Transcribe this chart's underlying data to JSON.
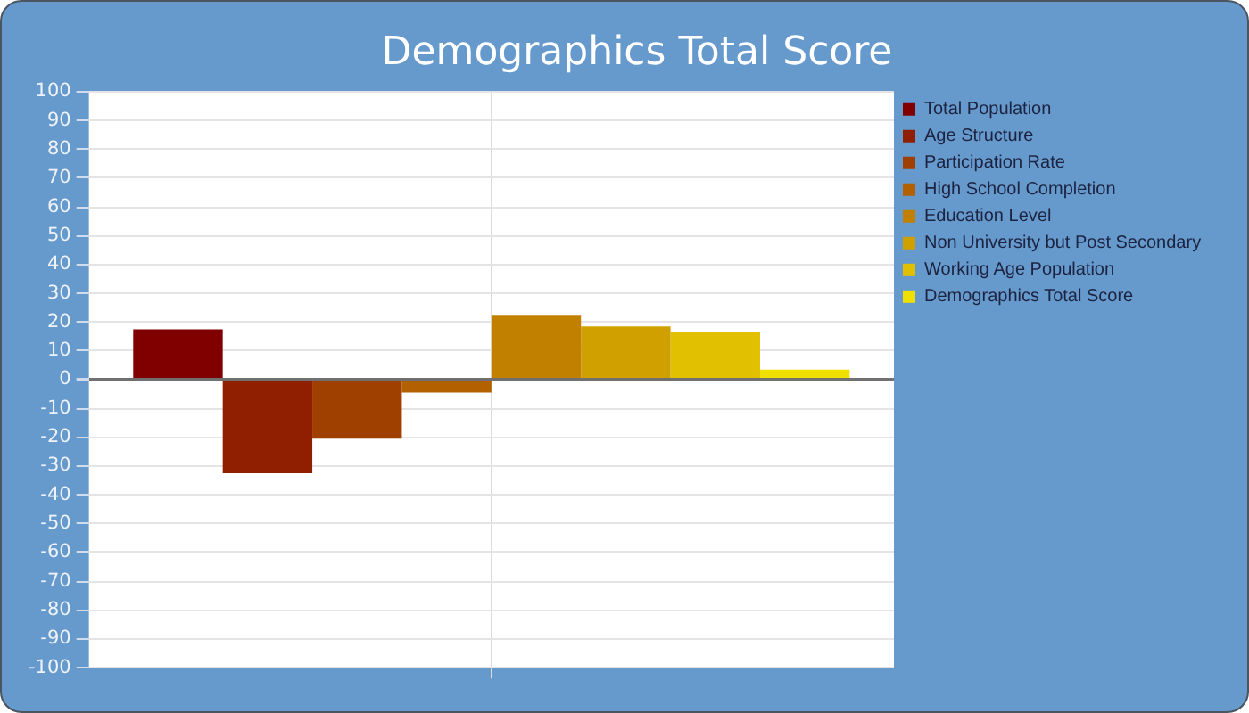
{
  "chart_data": {
    "type": "bar",
    "title": "Demographics Total Score",
    "categories": [
      null
    ],
    "series": [
      {
        "name": "Total Population",
        "color": "#800000",
        "values": [
          17.5
        ]
      },
      {
        "name": "Age Structure",
        "color": "#8f1f00",
        "values": [
          -32.5
        ]
      },
      {
        "name": "Participation Rate",
        "color": "#a04000",
        "values": [
          -20.5
        ]
      },
      {
        "name": "High School Completion",
        "color": "#b36000",
        "values": [
          -4.5
        ]
      },
      {
        "name": "Education Level",
        "color": "#c28000",
        "values": [
          22.5
        ]
      },
      {
        "name": "Non University but Post Secondary",
        "color": "#d0a000",
        "values": [
          18.5
        ]
      },
      {
        "name": "Working Age Population",
        "color": "#e0c000",
        "values": [
          16.5
        ]
      },
      {
        "name": "Demographics Total Score",
        "color": "#f0e000",
        "values": [
          3.5
        ]
      }
    ],
    "ylim": [
      -100,
      100
    ],
    "yticks": [
      -100,
      -90,
      -80,
      -70,
      -60,
      -50,
      -40,
      -30,
      -20,
      -10,
      0,
      10,
      20,
      30,
      40,
      50,
      60,
      70,
      80,
      90,
      100
    ],
    "grid": true,
    "legend": "top right"
  }
}
